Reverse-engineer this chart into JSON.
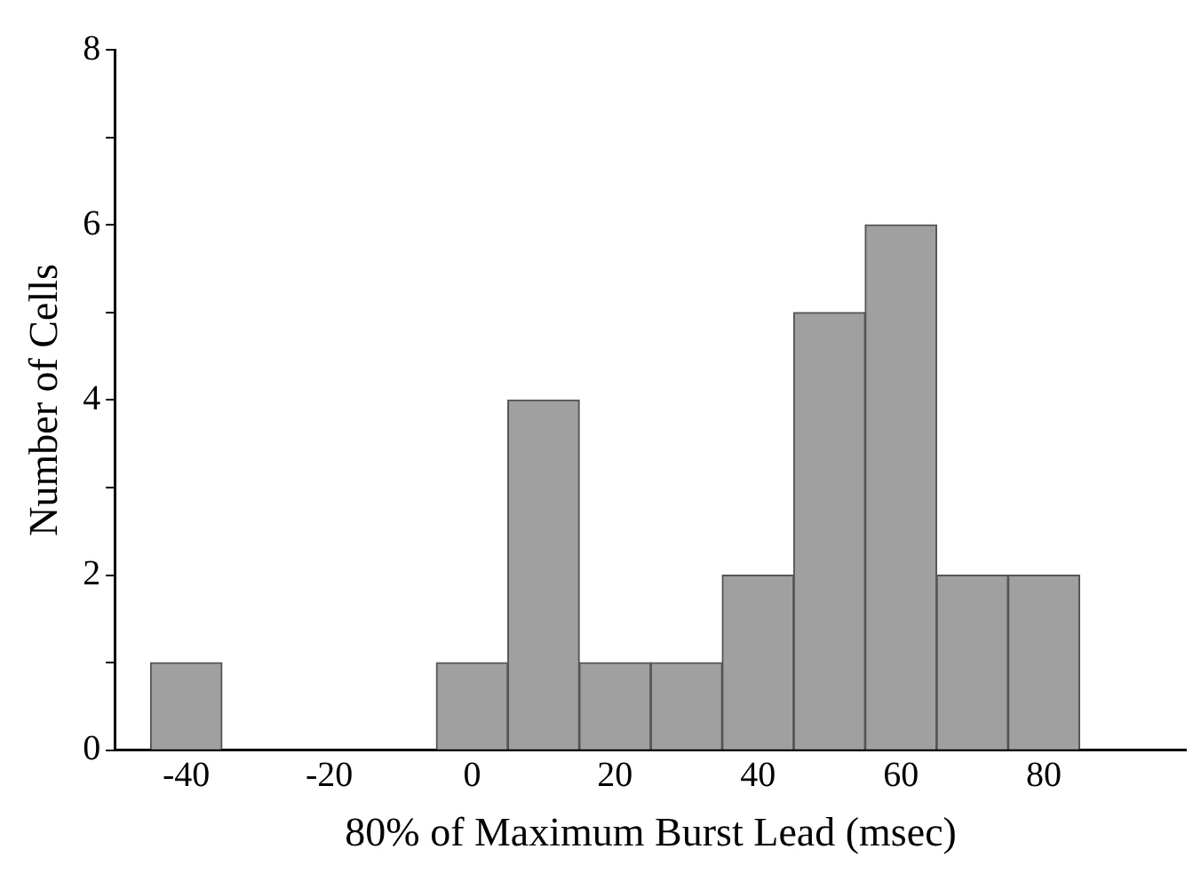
{
  "chart_data": {
    "type": "histogram",
    "xlabel": "80% of Maximum Burst Lead (msec)",
    "ylabel": "Number of Cells",
    "bins": [
      -45,
      -35,
      -25,
      -15,
      -5,
      5,
      15,
      25,
      35,
      45,
      55,
      65,
      75,
      85
    ],
    "values": [
      1,
      0,
      0,
      0,
      1,
      4,
      1,
      1,
      2,
      5,
      6,
      2,
      2
    ],
    "color": "#a0a0a0",
    "xlim": [
      -50,
      100
    ],
    "xticks": [
      -40,
      -20,
      0,
      20,
      40,
      60,
      80
    ],
    "ylim": [
      0,
      8
    ],
    "yticks": [
      0,
      {
        "value": 1,
        "label": null
      },
      2,
      {
        "value": 3,
        "label": null
      },
      4,
      {
        "value": 5,
        "label": null
      },
      6,
      {
        "value": 7,
        "label": null
      },
      8
    ],
    "grid": false,
    "legend": false
  }
}
